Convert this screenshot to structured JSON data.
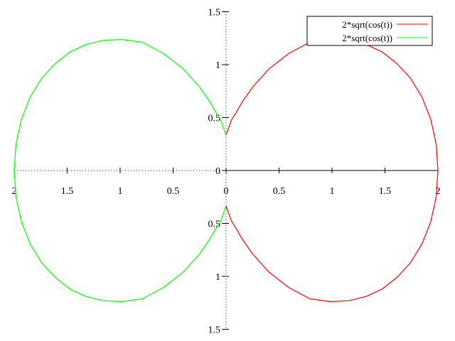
{
  "chart_data": {
    "type": "line",
    "polar_equation": "r = 2*sqrt(cos(t))",
    "xlim": [
      -2,
      2
    ],
    "ylim": [
      -1.5,
      1.5
    ],
    "x_ticks": [
      -2,
      -1.5,
      -1,
      -0.5,
      0,
      0.5,
      1,
      1.5,
      2
    ],
    "y_ticks": [
      1.5,
      1,
      0.5,
      0,
      -0.5,
      -1,
      -1.5
    ],
    "x_tick_labels": [
      "2",
      "1.5",
      "1",
      "0.5",
      "0",
      "0.5",
      "1",
      "1.5",
      "2"
    ],
    "y_tick_labels": [
      "1.5",
      "1",
      "0.5",
      "0",
      "0.5",
      "1",
      "1.5"
    ],
    "legend_position": "top-right",
    "series": [
      {
        "name": "2*sqrt(cos(t))",
        "color": "#ff0000",
        "x": [
          0.0,
          0.051,
          0.097,
          0.15,
          0.25,
          0.405,
          0.593,
          0.791,
          0.983,
          1.16,
          1.322,
          1.473,
          1.613,
          1.74,
          1.848,
          1.932,
          1.984,
          2.0,
          1.984,
          1.932,
          1.848,
          1.74,
          1.613,
          1.473,
          1.322,
          1.16,
          0.983,
          0.791,
          0.593,
          0.405,
          0.25,
          0.15,
          0.097,
          0.051,
          0.0
        ],
        "y": [
          0.335,
          0.478,
          0.551,
          0.645,
          0.788,
          0.96,
          1.107,
          1.212,
          1.238,
          1.23,
          1.19,
          1.12,
          1.01,
          0.872,
          0.696,
          0.484,
          0.247,
          0.0,
          -0.247,
          -0.484,
          -0.696,
          -0.872,
          -1.01,
          -1.12,
          -1.19,
          -1.23,
          -1.238,
          -1.212,
          -1.107,
          -0.96,
          -0.788,
          -0.645,
          -0.551,
          -0.478,
          -0.335
        ]
      },
      {
        "name": "2*sqrt(cos(t))",
        "color": "#00ff00",
        "x": [
          0.0,
          -0.051,
          -0.097,
          -0.15,
          -0.25,
          -0.405,
          -0.593,
          -0.791,
          -0.983,
          -1.16,
          -1.322,
          -1.473,
          -1.613,
          -1.74,
          -1.848,
          -1.932,
          -1.984,
          -2.0,
          -1.984,
          -1.932,
          -1.848,
          -1.74,
          -1.613,
          -1.473,
          -1.322,
          -1.16,
          -0.983,
          -0.791,
          -0.593,
          -0.405,
          -0.25,
          -0.15,
          -0.097,
          -0.051,
          0.0
        ],
        "y": [
          0.335,
          0.478,
          0.551,
          0.645,
          0.788,
          0.96,
          1.107,
          1.212,
          1.238,
          1.23,
          1.19,
          1.12,
          1.01,
          0.872,
          0.696,
          0.484,
          0.247,
          0.0,
          -0.247,
          -0.484,
          -0.696,
          -0.872,
          -1.01,
          -1.12,
          -1.19,
          -1.23,
          -1.238,
          -1.212,
          -1.107,
          -0.96,
          -0.788,
          -0.645,
          -0.551,
          -0.478,
          -0.335
        ]
      }
    ]
  }
}
